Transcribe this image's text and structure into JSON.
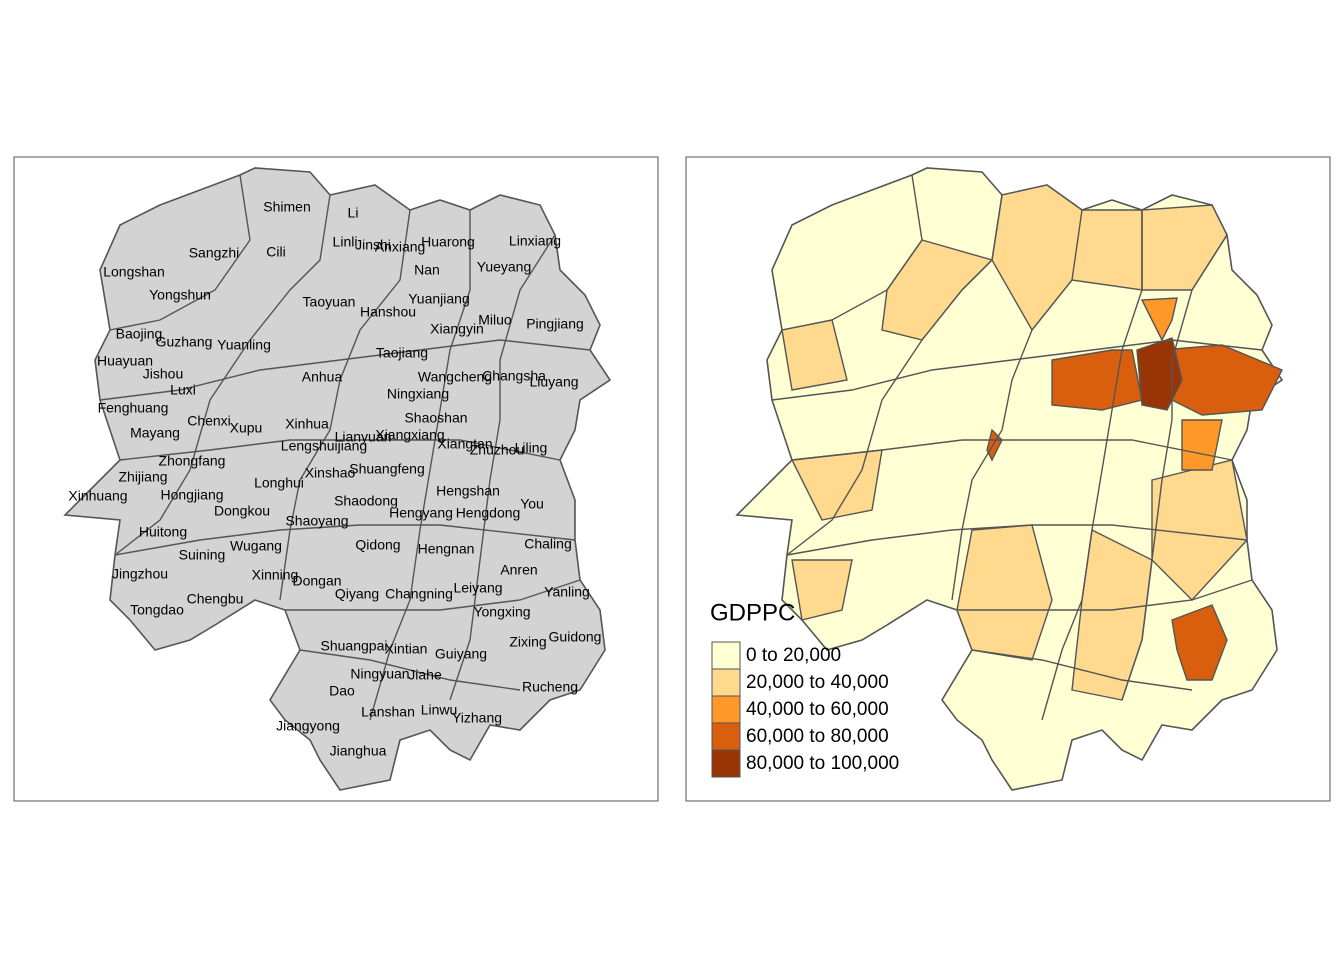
{
  "left_map": {
    "labels": [
      "Shimen",
      "Li",
      "Linli",
      "Jinshi",
      "Anxiang",
      "Huarong",
      "Linxiang",
      "Sangzhi",
      "Cili",
      "Longshan",
      "Nan",
      "Yueyang",
      "Yongshun",
      "Taoyuan",
      "Yuanjiang",
      "Hanshou",
      "Miluo",
      "Pingjiang",
      "Baojing",
      "Xiangyin",
      "Guzhang",
      "Yuanling",
      "Taojiang",
      "Huayuan",
      "Jishou",
      "Anhua",
      "Wangcheng",
      "Changsha",
      "Liuyang",
      "Luxi",
      "Ningxiang",
      "Fenghuang",
      "Chenxi",
      "Shaoshan",
      "Xupu",
      "Xinhua",
      "Mayang",
      "Lianyuan",
      "Xiangxiang",
      "Lengshuijiang",
      "Xiangtan",
      "Zhuzhou",
      "Liling",
      "Zhongfang",
      "Xinshao",
      "Shuangfeng",
      "Zhijiang",
      "Longhui",
      "Hengshan",
      "Hongjiang",
      "Xinhuang",
      "Shaodong",
      "You",
      "Dongkou",
      "Hengyang",
      "Hengdong",
      "Shaoyang",
      "Huitong",
      "Chaling",
      "Qidong",
      "Hengnan",
      "Wugang",
      "Suining",
      "Anren",
      "Jingzhou",
      "Xinning",
      "Dongan",
      "Leiyang",
      "Chengbu",
      "Qiyang",
      "Changning",
      "Yanling",
      "Tongdao",
      "Yongxing",
      "Guidong",
      "Zixing",
      "Shuangpai",
      "Xintian",
      "Guiyang",
      "Ningyuan",
      "Jiahe",
      "Rucheng",
      "Dao",
      "Linwu",
      "Lanshan",
      "Yizhang",
      "Jiangyong",
      "Jianghua"
    ]
  },
  "right_map": {
    "legend": {
      "title": "GDPPC",
      "items": [
        {
          "label": "0 to 20,000",
          "color": "#ffffd4"
        },
        {
          "label": "20,000 to 40,000",
          "color": "#fed98e"
        },
        {
          "label": "40,000 to 60,000",
          "color": "#fe9929"
        },
        {
          "label": "60,000 to 80,000",
          "color": "#d95f0e"
        },
        {
          "label": "80,000 to 100,000",
          "color": "#993404"
        }
      ]
    }
  }
}
